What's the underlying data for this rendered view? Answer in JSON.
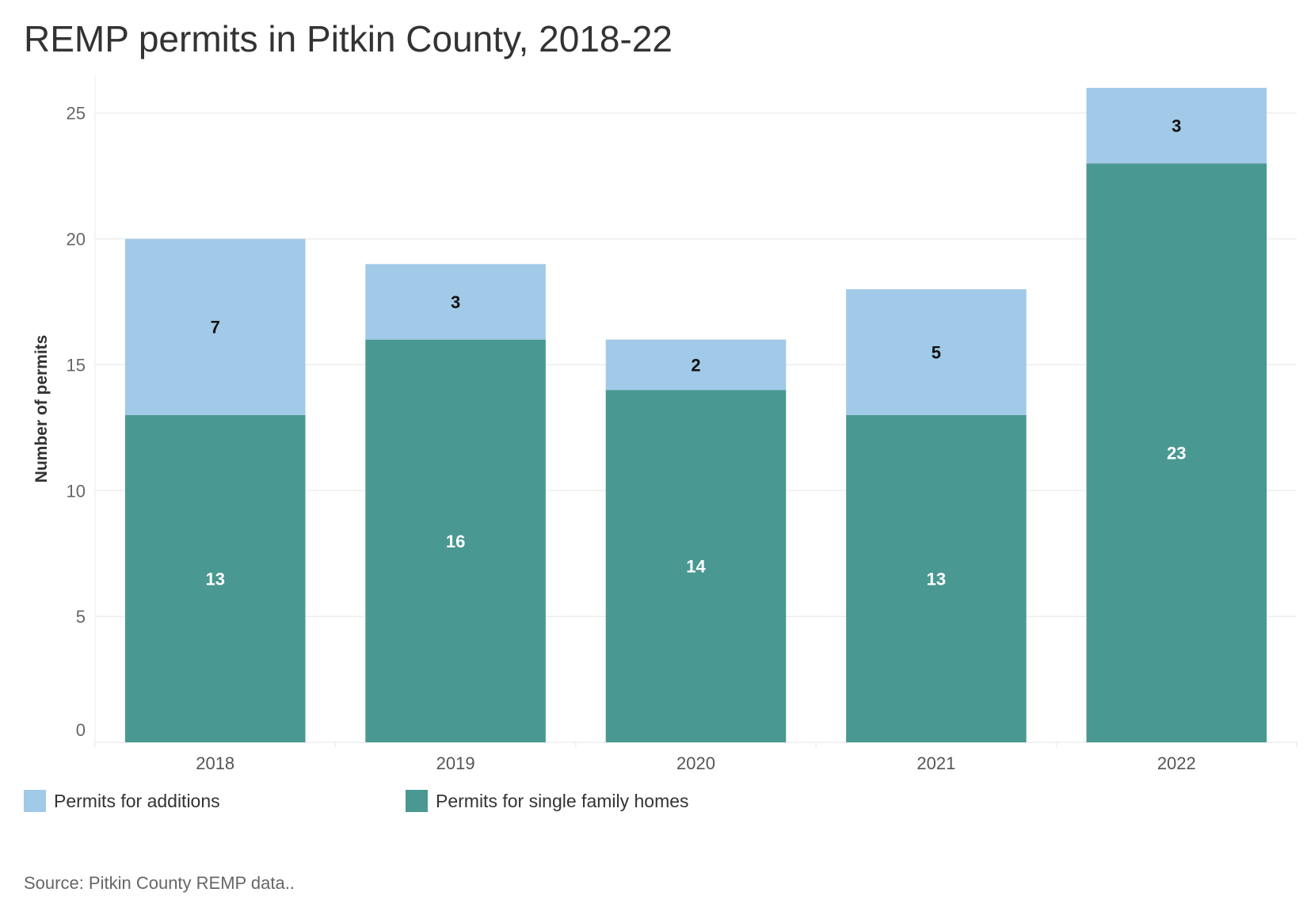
{
  "title": "REMP permits in Pitkin County, 2018-22",
  "source": "Source: Pitkin County REMP data..",
  "colors": {
    "additions": "#a1c9e8",
    "single_family": "#4a9892",
    "grid": "#eeeeee",
    "label_dark": "#111111",
    "label_light": "#ffffff"
  },
  "chart_data": {
    "type": "bar",
    "stacked": true,
    "categories": [
      "2018",
      "2019",
      "2020",
      "2021",
      "2022"
    ],
    "series": [
      {
        "name": "Permits for single family homes",
        "values": [
          13,
          16,
          14,
          13,
          23
        ]
      },
      {
        "name": "Permits for additions",
        "values": [
          7,
          3,
          2,
          5,
          3
        ]
      }
    ],
    "ylabel": "Number of permits",
    "xlabel": "",
    "ylim": [
      0,
      26.5
    ],
    "yticks": [
      0,
      5,
      10,
      15,
      20,
      25
    ],
    "grid": true,
    "legend_position": "bottom-left",
    "legend_entries": [
      "Permits for additions",
      "Permits for single family homes"
    ]
  }
}
